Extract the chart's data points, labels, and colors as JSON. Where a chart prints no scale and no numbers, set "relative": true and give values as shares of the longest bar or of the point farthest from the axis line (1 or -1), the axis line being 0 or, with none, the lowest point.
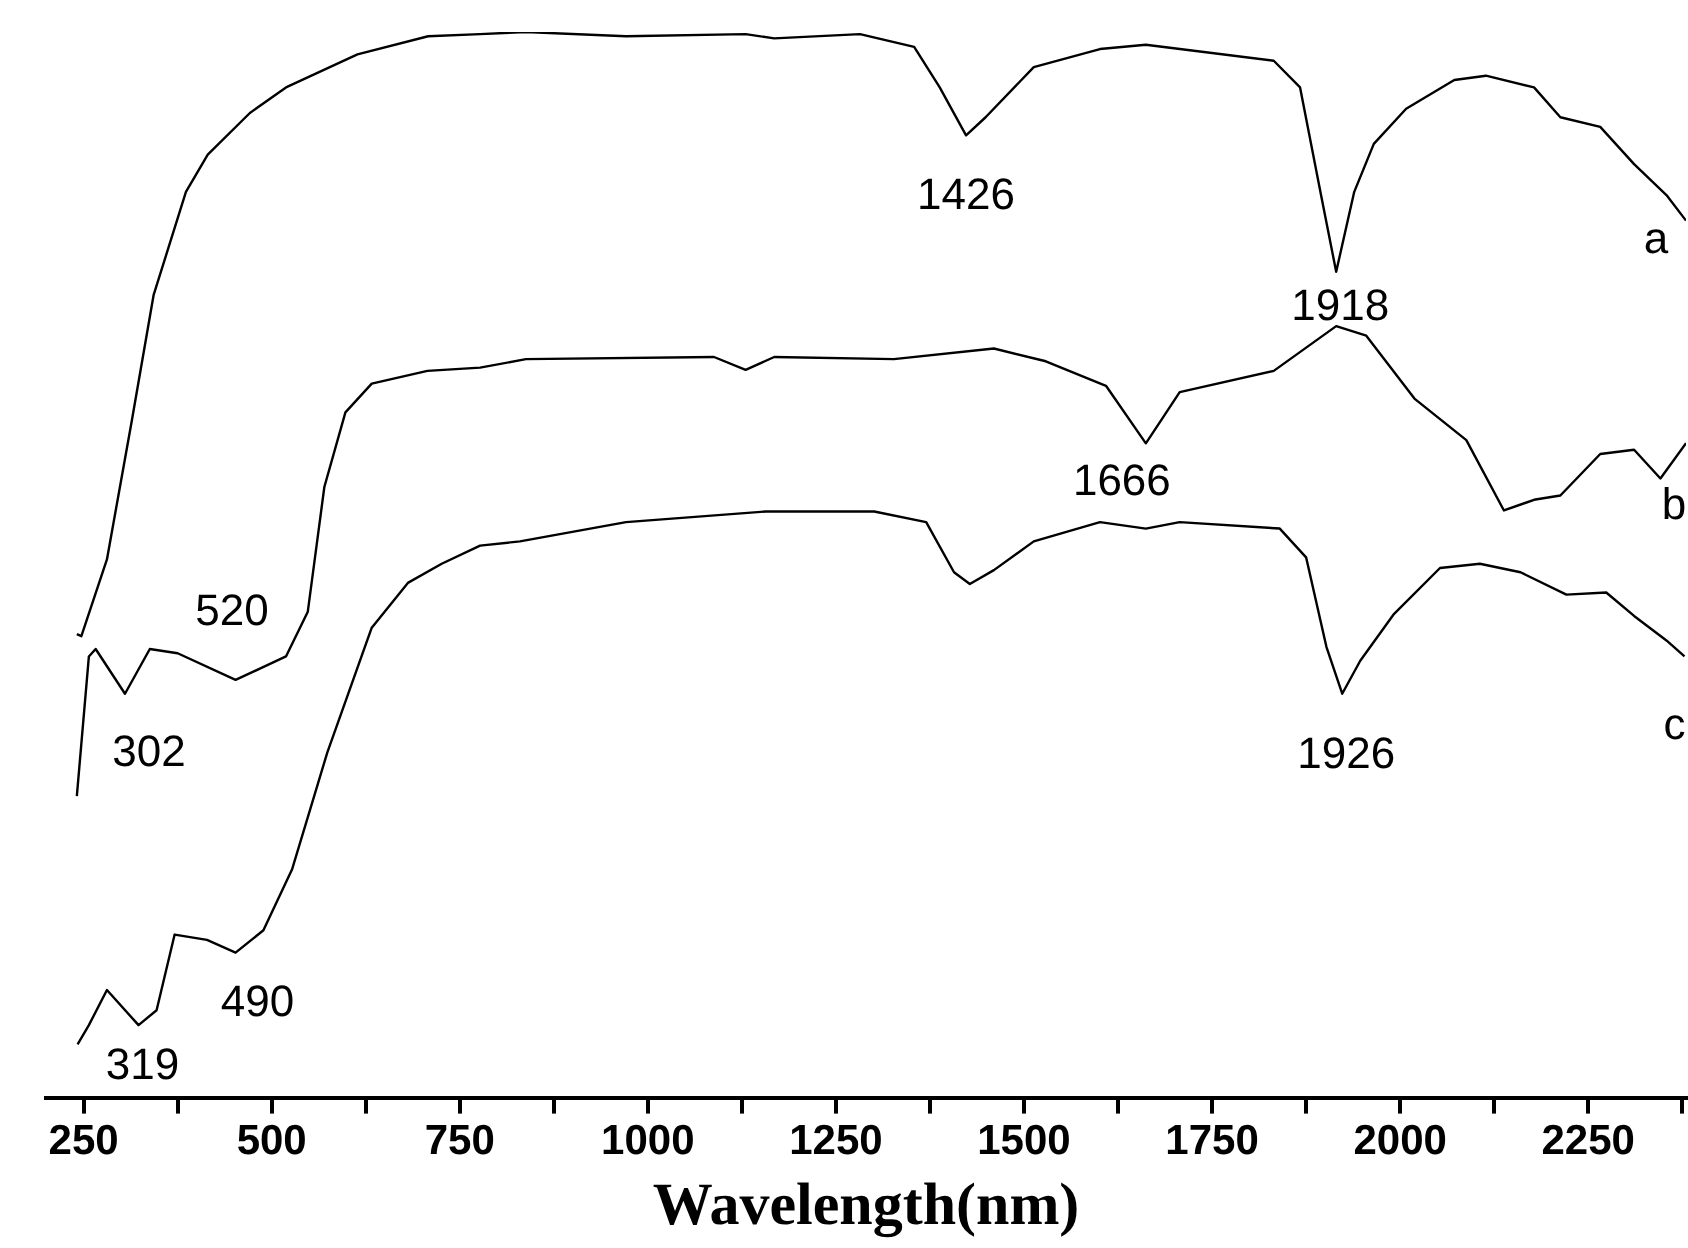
{
  "chart_data": {
    "type": "line",
    "relative": true,
    "xlabel": "Wavelength(nm)",
    "xlim": [
      200,
      2380
    ],
    "xticks": [
      250,
      {
        "value": 375,
        "label": null
      },
      500,
      {
        "value": 625,
        "label": null
      },
      750,
      {
        "value": 875,
        "label": null
      },
      1000,
      {
        "value": 1125,
        "label": null
      },
      1250,
      {
        "value": 1375,
        "label": null
      },
      1500,
      {
        "value": 1625,
        "label": null
      },
      1750,
      {
        "value": 1875,
        "label": null
      },
      2000,
      {
        "value": 2125,
        "label": null
      },
      2250,
      {
        "value": 2375,
        "label": null
      }
    ],
    "marker": "none",
    "line_style": "solid",
    "series": [
      {
        "name": "a",
        "color": "#000000",
        "x": [
          241,
          247,
          281,
          314,
          343,
          386,
          415,
          471,
          519,
          614,
          708,
          777,
          838,
          971,
          1130,
          1168,
          1282,
          1354,
          1388,
          1423,
          1449,
          1513,
          1601,
          1662,
          1832,
          1867,
          1894,
          1915,
          1939,
          1965,
          2008,
          2072,
          2114,
          2178,
          2213,
          2266,
          2311,
          2354,
          2380
        ],
        "values": [
          0.435,
          0.433,
          0.505,
          0.635,
          0.753,
          0.85,
          0.885,
          0.924,
          0.948,
          0.979,
          0.996,
          0.998,
          1.0,
          0.996,
          0.998,
          0.994,
          0.998,
          0.986,
          0.948,
          0.903,
          0.92,
          0.967,
          0.984,
          0.988,
          0.973,
          0.948,
          0.85,
          0.775,
          0.85,
          0.895,
          0.928,
          0.955,
          0.959,
          0.948,
          0.92,
          0.911,
          0.876,
          0.847,
          0.823
        ]
      },
      {
        "name": "b",
        "color": "#000000",
        "x": [
          241,
          257,
          266,
          305,
          338,
          375,
          452,
          519,
          548,
          570,
          598,
          633,
          707,
          777,
          838,
          1088,
          1130,
          1168,
          1327,
          1460,
          1529,
          1609,
          1662,
          1707,
          1832,
          1915,
          1955,
          2019,
          2088,
          2138,
          2178,
          2213,
          2266,
          2311,
          2346,
          2380
        ],
        "values": [
          0.283,
          0.414,
          0.421,
          0.379,
          0.421,
          0.417,
          0.392,
          0.414,
          0.456,
          0.573,
          0.643,
          0.67,
          0.682,
          0.685,
          0.693,
          0.695,
          0.683,
          0.695,
          0.693,
          0.703,
          0.691,
          0.668,
          0.614,
          0.662,
          0.682,
          0.724,
          0.715,
          0.656,
          0.617,
          0.551,
          0.561,
          0.565,
          0.604,
          0.608,
          0.581,
          0.614
        ]
      },
      {
        "name": "c",
        "color": "#000000",
        "x": [
          242,
          257,
          281,
          323,
          347,
          371,
          414,
          452,
          489,
          527,
          574,
          633,
          681,
          726,
          777,
          830,
          971,
          1157,
          1301,
          1370,
          1407,
          1428,
          1460,
          1513,
          1601,
          1662,
          1707,
          1840,
          1875,
          1902,
          1923,
          1947,
          1992,
          2053,
          2106,
          2160,
          2221,
          2274,
          2311,
          2354,
          2378
        ],
        "values": [
          0.05,
          0.068,
          0.101,
          0.068,
          0.082,
          0.153,
          0.148,
          0.136,
          0.157,
          0.214,
          0.324,
          0.441,
          0.483,
          0.501,
          0.518,
          0.522,
          0.54,
          0.55,
          0.55,
          0.54,
          0.493,
          0.482,
          0.495,
          0.522,
          0.54,
          0.534,
          0.54,
          0.534,
          0.507,
          0.423,
          0.379,
          0.41,
          0.454,
          0.497,
          0.501,
          0.493,
          0.472,
          0.474,
          0.452,
          0.429,
          0.414
        ]
      }
    ],
    "annotations": [
      {
        "text": "1426",
        "x": 1423,
        "y": 0.903
      },
      {
        "text": "1918",
        "x": 1915,
        "y": 0.775
      },
      {
        "text": "1666",
        "x": 1662,
        "y": 0.614
      },
      {
        "text": "1926",
        "x": 1923,
        "y": 0.379
      },
      {
        "text": "520",
        "x": 519,
        "y": 0.414
      },
      {
        "text": "302",
        "x": 305,
        "y": 0.379
      },
      {
        "text": "490",
        "x": 489,
        "y": 0.157
      },
      {
        "text": "319",
        "x": 323,
        "y": 0.068
      }
    ]
  }
}
